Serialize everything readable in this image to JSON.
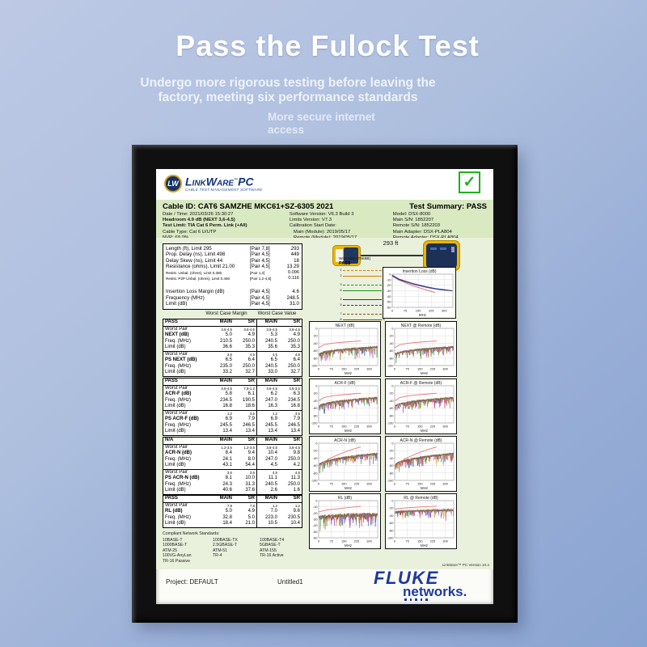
{
  "hero": {
    "title": "Pass the Fulock Test",
    "subtitle_line1": "Undergo more rigorous testing before leaving the",
    "subtitle_line2": "factory, meeting six performance standards",
    "tagline_line1": "More secure internet",
    "tagline_line2": "access"
  },
  "report": {
    "logo": {
      "badge": "LW",
      "name": "LinkWare",
      "trademark": "™",
      "suffix": "PC",
      "tagline": "CABLE TEST MANAGEMENT SOFTWARE"
    },
    "summary_check": "✓",
    "header": {
      "cable_id": "Cable ID: CAT6 SAMZHE MKC61+SZ-6305  2021",
      "test_summary": "Test Summary: PASS",
      "col1": [
        "Date / Time: 2021/03/26  15:30:27",
        "Headroom 4.9 dB (NEXT 3,6-4,5)",
        "Test Limit: TIA Cat 6 Perm. Link (+All)",
        "Cable Type: Cat 6 U/UTP",
        "NVP: 69.0%"
      ],
      "col2": [
        "Software Version: V6.3 Build 3",
        "Limits Version: V7.3",
        "Calibration Start Date:",
        "Main (Module): 2019/05/17",
        "Remote (Module): 2019/05/17"
      ],
      "col3": [
        "Model: DSX-8000",
        "Main S/N: 1852207",
        "Remote S/N: 1852203",
        "Main Adapter: DSX-PLA804",
        "Remote Adapter: DSX-PLA804"
      ]
    },
    "link_graphic": {
      "length_label": "293 ft"
    },
    "wire_map": {
      "title": "Wire Map (T568B)",
      "status": "PASS",
      "wires": [
        {
          "pin": "1",
          "color": "#e07b00",
          "dashed": true
        },
        {
          "pin": "2",
          "color": "#e07b00",
          "dashed": false
        },
        {
          "pin": "3",
          "color": "#189418",
          "dashed": true
        },
        {
          "pin": "6",
          "color": "#189418",
          "dashed": false
        },
        {
          "pin": "4",
          "color": "#2525d8",
          "dashed": false
        },
        {
          "pin": "5",
          "color": "#2525d8",
          "dashed": true
        },
        {
          "pin": "7",
          "color": "#8a4a12",
          "dashed": true
        },
        {
          "pin": "8",
          "color": "#8a4a12",
          "dashed": false
        }
      ]
    },
    "length_table": {
      "rows": [
        {
          "label": "Length (ft), Limit 295",
          "pair": "[Pair 7,8]",
          "value": "293"
        },
        {
          "label": "Prop. Delay (ns), Limit 498",
          "pair": "[Pair 4,5]",
          "value": "449"
        },
        {
          "label": "Delay Skew (ns), Limit 44",
          "pair": "[Pair 4,5]",
          "value": "18"
        },
        {
          "label": "Resistance (ohms), Limit 21.00",
          "pair": "[Pair 4,5]",
          "value": "13.29"
        },
        {
          "label": "Resist. Unbal. (ohms), Limit 0.380",
          "pair": "[Pair 1,2]",
          "value": "0.096"
        },
        {
          "label": "Resist. P2P Unbal. (ohms), Limit 0.460",
          "pair": "[Pair 1,2-4,5]",
          "value": "0.116"
        },
        {
          "label": "",
          "pair": "",
          "value": ""
        },
        {
          "label": "Insertion Loss Margin (dB)",
          "pair": "[Pair 4,5]",
          "value": "4.6"
        },
        {
          "label": "Frequency (MHz)",
          "pair": "[Pair 4,5]",
          "value": "248.5"
        },
        {
          "label": "Limit (dB)",
          "pair": "[Pair 4,5]",
          "value": "31.0"
        }
      ]
    },
    "worst_case_headers": [
      "Worst Case Margin",
      "Worst Case Value"
    ],
    "column_headers": [
      "MAIN",
      "SR",
      "MAIN",
      "SR"
    ],
    "row_labels": {
      "worst_pair": "Worst Pair",
      "freq": "Freq. (MHz)",
      "limit": "Limit (dB)"
    },
    "result_tables": [
      {
        "status": "PASS",
        "groups": [
          {
            "worst": [
              "3,6-4,5",
              "3,6-4,5",
              "3,6-4,5",
              "3,6-4,5"
            ],
            "name": "NEXT (dB)",
            "values": [
              "5.0",
              "4.9",
              "5.3",
              "4.9"
            ],
            "freq": [
              "210.5",
              "250.0",
              "240.5",
              "250.0"
            ],
            "limit": [
              "36.6",
              "35.3",
              "35.6",
              "35.3"
            ]
          },
          {
            "worst": [
              "3,6",
              "4,5",
              "4,5",
              "4,5"
            ],
            "name": "PS NEXT (dB)",
            "values": [
              "6.5",
              "6.4",
              "6.5",
              "6.4"
            ],
            "freq": [
              "235.0",
              "250.0",
              "240.5",
              "250.0"
            ],
            "limit": [
              "33.2",
              "32.7",
              "33.0",
              "32.7"
            ]
          }
        ]
      },
      {
        "status": "PASS",
        "groups": [
          {
            "worst": [
              "3,6-4,5",
              "7,8-1,2",
              "3,6-4,5",
              "4,5-3,6"
            ],
            "name": "ACR-F (dB)",
            "values": [
              "5.8",
              "6.1",
              "6.2",
              "6.3"
            ],
            "freq": [
              "234.5",
              "190.5",
              "247.0",
              "234.5"
            ],
            "limit": [
              "16.8",
              "18.6",
              "16.3",
              "16.8"
            ]
          },
          {
            "worst": [
              "1,2",
              "3,6",
              "1,2",
              "3,6"
            ],
            "name": "PS ACR-F (dB)",
            "values": [
              "6.9",
              "7.9",
              "6.9",
              "7.9"
            ],
            "freq": [
              "245.5",
              "246.5",
              "245.5",
              "246.5"
            ],
            "limit": [
              "13.4",
              "13.4",
              "13.4",
              "13.4"
            ]
          }
        ]
      },
      {
        "status": "N/A",
        "groups": [
          {
            "worst": [
              "1,2-3,6",
              "1,2-3,6",
              "3,6-4,5",
              "3,6-4,5"
            ],
            "name": "ACR-N (dB)",
            "values": [
              "8.4",
              "9.4",
              "10.4",
              "9.8"
            ],
            "freq": [
              "24.1",
              "8.0",
              "247.0",
              "250.0"
            ],
            "limit": [
              "43.1",
              "54.4",
              "4.5",
              "4.2"
            ]
          },
          {
            "worst": [
              "3,6",
              "3,6",
              "4,5",
              "4,5"
            ],
            "name": "PS ACR-N (dB)",
            "values": [
              "8.1",
              "10.0",
              "11.1",
              "11.3"
            ],
            "freq": [
              "24.3",
              "31.3",
              "240.5",
              "250.0"
            ],
            "limit": [
              "40.6",
              "37.6",
              "2.6",
              "1.6"
            ]
          }
        ]
      },
      {
        "status": "PASS",
        "groups": [
          {
            "worst": [
              "7,8",
              "7,8",
              "1,2",
              "1,2"
            ],
            "name": "RL (dB)",
            "values": [
              "5.0",
              "4.9",
              "7.0",
              "9.6"
            ],
            "freq": [
              "32.8",
              "5.0",
              "223.0",
              "230.5"
            ],
            "limit": [
              "18.4",
              "21.0",
              "10.5",
              "10.4"
            ]
          }
        ]
      }
    ],
    "compliant_standards": {
      "title": "Compliant Network Standards:",
      "columns": [
        [
          "10BASE-T",
          "1000BASE-T",
          "ATM-25",
          "100VG-AnyLan",
          "TR-16 Passive"
        ],
        [
          "100BASE-TX",
          "2.5GBASE-T",
          "ATM-51",
          "TR-4"
        ],
        [
          "100BASE-T4",
          "5GBASE-T",
          "ATM-155",
          "TR-16 Active"
        ]
      ]
    },
    "footer_version": "LinkWare™ PC Version 10.4",
    "page_footer": {
      "project": "Project: DEFAULT",
      "file": "Untitled1",
      "brand_top": "FLUKE",
      "brand_bottom": "networks."
    }
  },
  "chart_defaults": {
    "trace_palette": [
      "#3a3ad0",
      "#9932a8",
      "#d8880a",
      "#2e8b2e",
      "#c03060",
      "#6a6a20"
    ]
  },
  "chart_data": [
    {
      "id": "insertion_loss",
      "type": "line",
      "title": "Insertion Loss (dB)",
      "xlabel": "MHz",
      "xticks": [
        0,
        75,
        150,
        225,
        300
      ],
      "xmax": 350,
      "ylim": [
        -60,
        0
      ],
      "yticks": [
        0,
        -10,
        -20,
        -30,
        -40,
        -50,
        -60
      ],
      "series": [
        {
          "name": "limit",
          "color": "#e06666",
          "points": [
            [
              2,
              -4
            ],
            [
              40,
              -11
            ],
            [
              80,
              -16
            ],
            [
              120,
              -21
            ],
            [
              160,
              -25
            ],
            [
              200,
              -29
            ],
            [
              245,
              -33
            ]
          ]
        },
        {
          "name": "main",
          "color": "#2a35b8",
          "points": [
            [
              2,
              -2
            ],
            [
              40,
              -9
            ],
            [
              80,
              -13
            ],
            [
              120,
              -17
            ],
            [
              160,
              -20
            ],
            [
              200,
              -23
            ],
            [
              250,
              -26
            ],
            [
              300,
              -28
            ],
            [
              345,
              -30
            ]
          ]
        },
        {
          "name": "remote",
          "color": "#40406a",
          "points": [
            [
              2,
              -3
            ],
            [
              40,
              -10
            ],
            [
              80,
              -14
            ],
            [
              120,
              -18
            ],
            [
              160,
              -21
            ],
            [
              200,
              -24
            ],
            [
              250,
              -27
            ],
            [
              300,
              -29
            ],
            [
              345,
              -30
            ]
          ]
        }
      ]
    },
    {
      "id": "next_main",
      "type": "noisy",
      "title": "NEXT (dB)",
      "xlabel": "MHz",
      "xticks": [
        0,
        75,
        150,
        225,
        300
      ],
      "xmax": 350,
      "ylim": [
        -100,
        0
      ],
      "yticks": [
        0,
        -20,
        -40,
        -60,
        -80,
        -100
      ],
      "limit": {
        "color": "#e87878",
        "points": [
          [
            2,
            -52
          ],
          [
            30,
            -44
          ],
          [
            80,
            -40
          ],
          [
            150,
            -37
          ],
          [
            250,
            -34
          ]
        ]
      },
      "band": {
        "start": -72,
        "end": -50,
        "spike": 30,
        "seed": 11
      }
    },
    {
      "id": "next_remote",
      "type": "noisy",
      "title": "NEXT @ Remote (dB)",
      "xlabel": "MHz",
      "xticks": [
        0,
        75,
        150,
        225,
        300
      ],
      "xmax": 350,
      "ylim": [
        -100,
        0
      ],
      "yticks": [
        0,
        -20,
        -40,
        -60,
        -80,
        -100
      ],
      "limit": {
        "color": "#e87878",
        "points": [
          [
            2,
            -52
          ],
          [
            30,
            -44
          ],
          [
            80,
            -40
          ],
          [
            150,
            -37
          ],
          [
            250,
            -34
          ]
        ]
      },
      "band": {
        "start": -72,
        "end": -50,
        "spike": 30,
        "seed": 23
      }
    },
    {
      "id": "acrf_main",
      "type": "noisy",
      "title": "ACR-F (dB)",
      "xlabel": "MHz",
      "xticks": [
        0,
        75,
        150,
        225,
        300
      ],
      "xmax": 350,
      "ylim": [
        -100,
        0
      ],
      "yticks": [
        0,
        -20,
        -40,
        -60,
        -80,
        -100
      ],
      "limit": {
        "color": "#e87878",
        "points": [
          [
            2,
            -40
          ],
          [
            30,
            -32
          ],
          [
            80,
            -27
          ],
          [
            150,
            -24
          ],
          [
            250,
            -20
          ]
        ]
      },
      "band": {
        "start": -58,
        "end": -32,
        "spike": 30,
        "seed": 37
      }
    },
    {
      "id": "acrf_remote",
      "type": "noisy",
      "title": "ACR-F @ Remote (dB)",
      "xlabel": "MHz",
      "xticks": [
        0,
        75,
        150,
        225,
        300
      ],
      "xmax": 350,
      "ylim": [
        -100,
        0
      ],
      "yticks": [
        0,
        -20,
        -40,
        -60,
        -80,
        -100
      ],
      "limit": {
        "color": "#e87878",
        "points": [
          [
            2,
            -40
          ],
          [
            30,
            -32
          ],
          [
            80,
            -27
          ],
          [
            150,
            -24
          ],
          [
            250,
            -20
          ]
        ]
      },
      "band": {
        "start": -58,
        "end": -32,
        "spike": 30,
        "seed": 41
      }
    },
    {
      "id": "acrn_main",
      "type": "noisy",
      "title": "ACR-N (dB)",
      "xlabel": "MHz",
      "xticks": [
        0,
        75,
        150,
        225,
        300
      ],
      "xmax": 350,
      "ylim": [
        -100,
        0
      ],
      "yticks": [
        0,
        -20,
        -40,
        -60,
        -80,
        -100
      ],
      "limit": {
        "color": "#e87878",
        "points": [
          [
            2,
            -70
          ],
          [
            20,
            -55
          ],
          [
            60,
            -42
          ],
          [
            120,
            -30
          ],
          [
            190,
            -18
          ],
          [
            250,
            -10
          ]
        ]
      },
      "band": {
        "start": -62,
        "end": -28,
        "spike": 30,
        "seed": 53
      }
    },
    {
      "id": "acrn_remote",
      "type": "noisy",
      "title": "ACR-N @ Remote (dB)",
      "xlabel": "MHz",
      "xticks": [
        0,
        75,
        150,
        225,
        300
      ],
      "xmax": 350,
      "ylim": [
        -100,
        0
      ],
      "yticks": [
        0,
        -20,
        -40,
        -60,
        -80,
        -100
      ],
      "limit": {
        "color": "#e87878",
        "points": [
          [
            2,
            -70
          ],
          [
            20,
            -55
          ],
          [
            60,
            -42
          ],
          [
            120,
            -30
          ],
          [
            190,
            -18
          ],
          [
            250,
            -10
          ]
        ]
      },
      "band": {
        "start": -62,
        "end": -28,
        "spike": 30,
        "seed": 59
      }
    },
    {
      "id": "rl_main",
      "type": "noisy",
      "title": "RL (dB)",
      "xlabel": "MHz",
      "xticks": [
        0,
        75,
        150,
        225,
        300
      ],
      "xmax": 350,
      "ylim": [
        -60,
        0
      ],
      "yticks": [
        0,
        -10,
        -20,
        -30,
        -40,
        -50,
        -60
      ],
      "limit": {
        "color": "#e87878",
        "points": [
          [
            2,
            -18
          ],
          [
            50,
            -15
          ],
          [
            150,
            -12
          ],
          [
            250,
            -9
          ]
        ]
      },
      "band": {
        "start": -28,
        "end": -22,
        "spike": 24,
        "seed": 67
      }
    },
    {
      "id": "rl_remote",
      "type": "noisy",
      "title": "RL @ Remote (dB)",
      "xlabel": "MHz",
      "xticks": [
        0,
        75,
        150,
        225,
        300
      ],
      "xmax": 350,
      "ylim": [
        -100,
        0
      ],
      "yticks": [
        0,
        -20,
        -40,
        -60,
        -80,
        -100
      ],
      "limit": {
        "color": "#e87878",
        "points": [
          [
            2,
            -23
          ],
          [
            50,
            -20
          ],
          [
            150,
            -17
          ],
          [
            250,
            -15
          ]
        ]
      },
      "band": {
        "start": -32,
        "end": -25,
        "spike": 26,
        "seed": 71
      }
    }
  ]
}
